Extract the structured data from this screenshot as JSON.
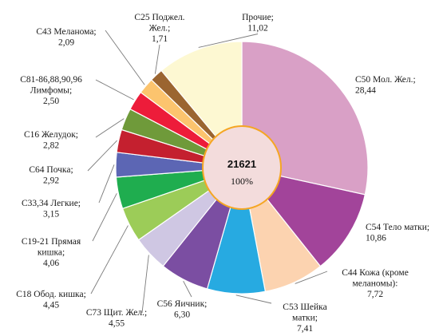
{
  "chart_data": {
    "type": "pie",
    "title": "",
    "center": {
      "total": "21621",
      "percent": "100%"
    },
    "slices": [
      {
        "lines": [
          "C50 Мол. Жел.;",
          "28,44"
        ],
        "value": 28.44,
        "color": "#d9a0c6"
      },
      {
        "lines": [
          "C54 Тело матки;",
          "10,86"
        ],
        "value": 10.86,
        "color": "#a2449a"
      },
      {
        "lines": [
          "C44 Кожа (кроме",
          "меланомы):",
          "7,72"
        ],
        "value": 7.72,
        "color": "#fcd3b0"
      },
      {
        "lines": [
          "C53 Шейка",
          "матки;",
          "7,41"
        ],
        "value": 7.41,
        "color": "#27aae1"
      },
      {
        "lines": [
          "C56 Яичник;",
          "6,30"
        ],
        "value": 6.3,
        "color": "#7b4ea2"
      },
      {
        "lines": [
          "C73 Щит. Жел.;",
          "4,55"
        ],
        "value": 4.55,
        "color": "#cfc7e3"
      },
      {
        "lines": [
          "C18 Обод. кишка;",
          "4,45"
        ],
        "value": 4.45,
        "color": "#9ccc58"
      },
      {
        "lines": [
          "C19-21 Прямая",
          "кишка;",
          "4,06"
        ],
        "value": 4.06,
        "color": "#1fad4f"
      },
      {
        "lines": [
          "C33,34 Легкие;",
          "3,15"
        ],
        "value": 3.15,
        "color": "#5c66b4"
      },
      {
        "lines": [
          "C64 Почка;",
          "2,92"
        ],
        "value": 2.92,
        "color": "#c4202f"
      },
      {
        "lines": [
          "C16 Желудок;",
          "2,82"
        ],
        "value": 2.82,
        "color": "#6f9a3a"
      },
      {
        "lines": [
          "C81-86,88,90,96",
          "Лимфомы;",
          "2,50"
        ],
        "value": 2.5,
        "color": "#ed1c3a"
      },
      {
        "lines": [
          "C43 Меланома;",
          "2,09"
        ],
        "value": 2.09,
        "color": "#fcc46e"
      },
      {
        "lines": [
          "C25 Поджел.",
          "Жел.;",
          "1,71"
        ],
        "value": 1.71,
        "color": "#9b6530"
      },
      {
        "lines": [
          "Прочие;",
          "11,02"
        ],
        "value": 11.02,
        "color": "#fdf8d2"
      }
    ]
  }
}
